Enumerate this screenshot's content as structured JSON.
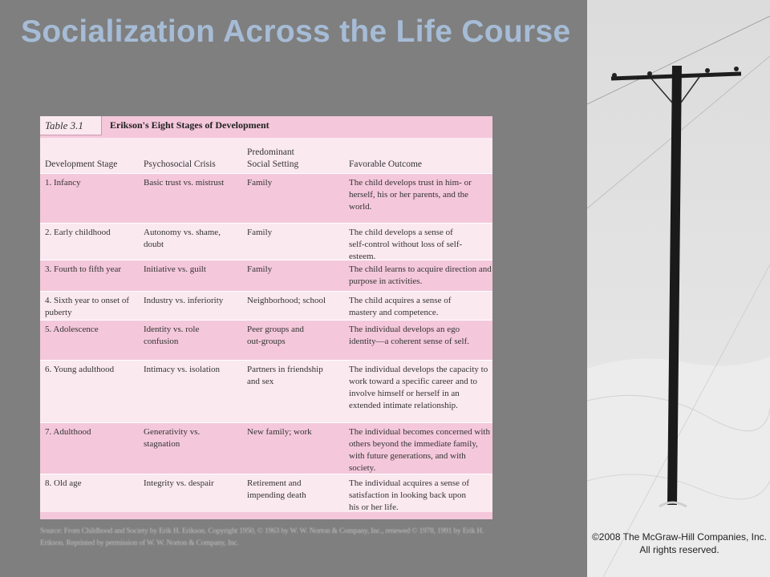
{
  "slide": {
    "title": "Socialization Across the Life Course",
    "copyright": "©2008 The McGraw-Hill Companies, Inc. All rights reserved."
  },
  "table": {
    "label": "Table 3.1",
    "caption": "Erikson's Eight Stages of Development",
    "headers": {
      "stage": "Development Stage",
      "crisis": "Psychosocial Crisis",
      "setting": "Predominant Social Setting",
      "outcome": "Favorable Outcome"
    },
    "rows": [
      {
        "stage": "1. Infancy",
        "crisis": "Basic trust vs. mistrust",
        "setting": "Family",
        "outcome": "The child develops trust in him- or herself, his or her parents, and the world."
      },
      {
        "stage": "2. Early childhood",
        "crisis": "Autonomy vs. shame, doubt",
        "setting": "Family",
        "outcome": "The child develops a sense of self-control without loss of self-esteem."
      },
      {
        "stage": "3. Fourth to fifth year",
        "crisis": "Initiative vs. guilt",
        "setting": "Family",
        "outcome": "The child learns to acquire direction and purpose in activities."
      },
      {
        "stage": "4. Sixth year to onset of puberty",
        "crisis": "Industry vs. inferiority",
        "setting": "Neighborhood; school",
        "outcome": "The child acquires a sense of mastery and competence."
      },
      {
        "stage": "5. Adolescence",
        "crisis": "Identity vs. role confusion",
        "setting": "Peer groups and out-groups",
        "outcome": "The individual develops an ego identity—a coherent sense of self."
      },
      {
        "stage": "6. Young adulthood",
        "crisis": "Intimacy vs. isolation",
        "setting": "Partners in friendship and sex",
        "outcome": "The individual develops the capacity to work toward a specific career and to involve himself or herself in an extended intimate relationship."
      },
      {
        "stage": "7. Adulthood",
        "crisis": "Generativity vs. stagnation",
        "setting": "New family; work",
        "outcome": "The individual becomes concerned with others beyond the immediate family, with future generations, and with society."
      },
      {
        "stage": "8. Old age",
        "crisis": "Integrity vs. despair",
        "setting": "Retirement and impending death",
        "outcome": "The individual acquires a sense of satisfaction in looking back upon his or her life."
      }
    ],
    "source": "Source: From Childhood and Society by Erik H. Erikson. Copyright 1950, © 1963 by W. W. Norton & Company, Inc., renewed © 1978, 1991 by Erik H. Erikson. Reprinted by permission of W. W. Norton & Company, Inc."
  }
}
